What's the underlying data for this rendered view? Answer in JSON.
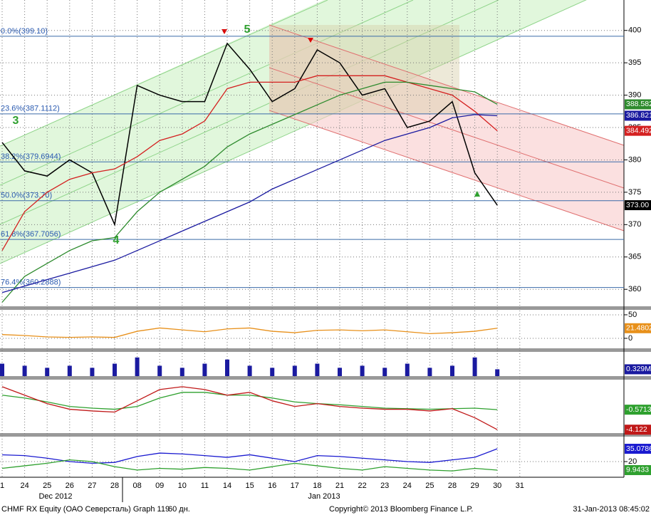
{
  "chart_data": [
    {
      "type": "line",
      "categories": [
        "1",
        "24",
        "25",
        "26",
        "27",
        "28",
        "08",
        "09",
        "10",
        "11",
        "14",
        "15",
        "16",
        "17",
        "18",
        "21",
        "22",
        "23",
        "24",
        "25",
        "28",
        "29",
        "30",
        "31"
      ],
      "x_groups": [
        "Dec 2012",
        "Jan 2013"
      ],
      "ylim": [
        357.6,
        404.7
      ],
      "yticks": [
        360,
        365,
        370,
        375,
        380,
        385,
        390,
        395,
        400
      ],
      "grid": true,
      "levels": [
        {
          "value": 399.1,
          "label": "0.0%(399.10)"
        },
        {
          "value": 387.1112,
          "label": "23.6%(387.1112)"
        },
        {
          "value": 379.6944,
          "label": "38.2%(379.6944)"
        },
        {
          "value": 373.7,
          "label": "50.0%(373.70)"
        },
        {
          "value": 367.7056,
          "label": "61.8%(367.7056)"
        },
        {
          "value": 360.2888,
          "label": "76.4%(360.2888)"
        }
      ],
      "annotations": [
        "3",
        "4",
        "5"
      ],
      "series": [
        {
          "color": "#000000",
          "values": [
            382.7,
            378.3,
            377.5,
            380,
            378,
            370,
            391.5,
            390,
            389,
            389,
            398,
            394,
            389,
            391,
            397,
            395,
            390,
            391,
            385,
            386,
            389,
            378,
            373.0,
            null
          ],
          "value_labels": [
            null,
            null,
            null,
            null,
            null,
            null,
            null,
            null,
            null,
            null,
            null,
            null,
            null,
            null,
            null,
            null,
            null,
            null,
            null,
            null,
            null,
            null,
            "373.00",
            null
          ]
        },
        {
          "color": "#d42020",
          "values": [
            366,
            372,
            375,
            377,
            378,
            378.6,
            380.5,
            383,
            384,
            386,
            391,
            392,
            392,
            392,
            393,
            393,
            393,
            393,
            392,
            391,
            390,
            387.5,
            384.492,
            null
          ],
          "value_labels": [
            null,
            null,
            null,
            null,
            null,
            null,
            null,
            null,
            null,
            null,
            null,
            null,
            null,
            null,
            null,
            null,
            null,
            null,
            null,
            null,
            null,
            null,
            "384.492",
            null
          ]
        },
        {
          "color": "#2e8b2e",
          "values": [
            358,
            362,
            364,
            366,
            367.5,
            368,
            372,
            375,
            377,
            379,
            382,
            384,
            385.5,
            387,
            388.5,
            390,
            391,
            392,
            392,
            391.5,
            391,
            390.5,
            388.582,
            null
          ],
          "value_labels": [
            null,
            null,
            null,
            null,
            null,
            null,
            null,
            null,
            null,
            null,
            null,
            null,
            null,
            null,
            null,
            null,
            null,
            null,
            null,
            null,
            null,
            null,
            "388.582",
            null
          ]
        },
        {
          "color": "#1a1aa0",
          "values": [
            359.5,
            360.5,
            361.5,
            362.5,
            363.5,
            364.5,
            366,
            367.5,
            369,
            370.5,
            372,
            373.5,
            375.5,
            377,
            378.5,
            380,
            381.5,
            383,
            384,
            385,
            386.5,
            387,
            386.821,
            null
          ],
          "value_labels": [
            null,
            null,
            null,
            null,
            null,
            null,
            null,
            null,
            null,
            null,
            null,
            null,
            null,
            null,
            null,
            null,
            null,
            null,
            null,
            null,
            null,
            null,
            "386.821",
            null
          ]
        }
      ]
    },
    {
      "type": "line",
      "ylim": [
        -19.7,
        59
      ],
      "yticks": [
        0,
        50
      ],
      "series": [
        {
          "color": "#e8901a",
          "values": [
            8,
            6,
            3,
            2,
            3,
            2,
            15,
            22,
            18,
            14,
            20,
            22,
            15,
            12,
            17,
            18,
            16,
            18,
            14,
            10,
            12,
            15,
            21.4802,
            null
          ],
          "value_labels": [
            null,
            null,
            null,
            null,
            null,
            null,
            null,
            null,
            null,
            null,
            null,
            null,
            null,
            null,
            null,
            null,
            null,
            null,
            null,
            null,
            null,
            null,
            "21.4802",
            null
          ]
        }
      ]
    },
    {
      "type": "bar",
      "ylim": [
        0,
        1.1
      ],
      "series": [
        {
          "color": "#1a1aa0",
          "values": [
            0.6,
            0.5,
            0.4,
            0.5,
            0.4,
            0.6,
            0.9,
            0.5,
            0.4,
            0.6,
            0.8,
            0.5,
            0.4,
            0.5,
            0.6,
            0.4,
            0.5,
            0.4,
            0.6,
            0.4,
            0.5,
            0.9,
            0.329,
            null
          ],
          "value_labels": [
            null,
            null,
            null,
            null,
            null,
            null,
            null,
            null,
            null,
            null,
            null,
            null,
            null,
            null,
            null,
            null,
            null,
            null,
            null,
            null,
            null,
            null,
            "0.329M",
            null
          ]
        }
      ]
    },
    {
      "type": "line",
      "ylim": [
        -4.6,
        4.5
      ],
      "series": [
        {
          "color": "#2ea02e",
          "values": [
            2,
            1.5,
            0.8,
            0,
            -0.3,
            -0.5,
            0,
            1.5,
            2.5,
            2.5,
            2,
            2,
            1.5,
            0.8,
            0.5,
            0.3,
            0,
            -0.3,
            -0.4,
            -0.5,
            -0.4,
            -0.3,
            -0.5713,
            null
          ],
          "value_labels": [
            null,
            null,
            null,
            null,
            null,
            null,
            null,
            null,
            null,
            null,
            null,
            null,
            null,
            null,
            null,
            null,
            null,
            null,
            null,
            null,
            null,
            null,
            "-0.5713",
            null
          ]
        },
        {
          "color": "#c01818",
          "values": [
            3.5,
            2,
            0.5,
            -0.5,
            -0.8,
            -1,
            1,
            3,
            3.5,
            3,
            2,
            2.5,
            1,
            0,
            0.5,
            0,
            -0.3,
            -0.5,
            -0.5,
            -0.8,
            -0.4,
            -2,
            -4.122,
            null
          ],
          "value_labels": [
            null,
            null,
            null,
            null,
            null,
            null,
            null,
            null,
            null,
            null,
            null,
            null,
            null,
            null,
            null,
            null,
            null,
            null,
            null,
            null,
            null,
            null,
            "-4.122",
            null
          ]
        }
      ]
    },
    {
      "type": "line",
      "ylim": [
        3.2,
        47.7
      ],
      "yticks": [
        20
      ],
      "series": [
        {
          "color": "#1a1ad0",
          "values": [
            28,
            27,
            24,
            20,
            18,
            19,
            26,
            30,
            29,
            27,
            25,
            28,
            24,
            20,
            27,
            26,
            24,
            22,
            20,
            19,
            22,
            25,
            35.0786,
            null
          ],
          "value_labels": [
            null,
            null,
            null,
            null,
            null,
            null,
            null,
            null,
            null,
            null,
            null,
            null,
            null,
            null,
            null,
            null,
            null,
            null,
            null,
            null,
            null,
            null,
            "35.0786",
            null
          ]
        },
        {
          "color": "#2ea02e",
          "values": [
            12,
            15,
            18,
            22,
            20,
            14,
            10,
            12,
            11,
            13,
            12,
            10,
            14,
            18,
            15,
            12,
            10,
            14,
            12,
            10,
            9,
            12,
            9.9433,
            null
          ],
          "value_labels": [
            null,
            null,
            null,
            null,
            null,
            null,
            null,
            null,
            null,
            null,
            null,
            null,
            null,
            null,
            null,
            null,
            null,
            null,
            null,
            null,
            null,
            null,
            "9.9433",
            null
          ]
        }
      ]
    }
  ],
  "footer": {
    "security": "CHMF RX Equity (ОАО Северсталь) Graph 119",
    "period": "60 дн.",
    "copyright": "Copyright© 2013 Bloomberg Finance L.P.",
    "timestamp": "31-Jan-2013 08:45:02"
  }
}
